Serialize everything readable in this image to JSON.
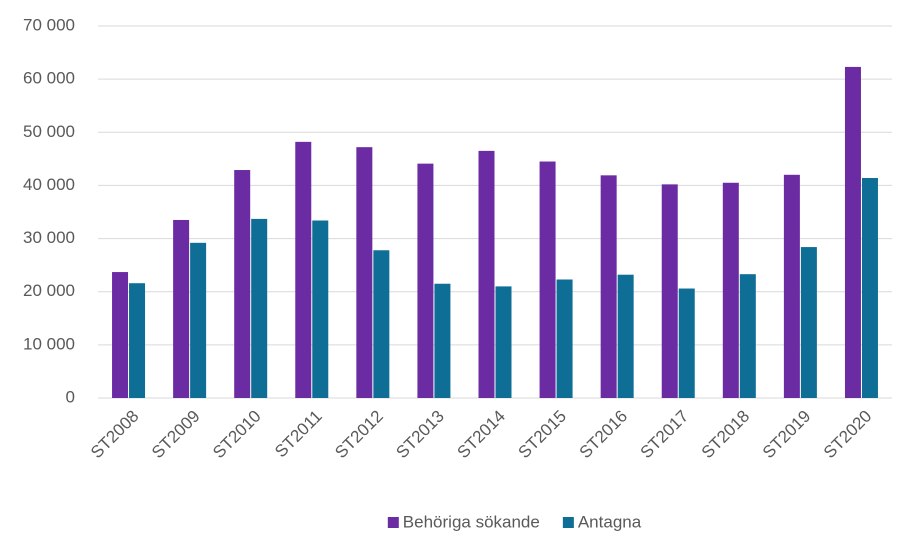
{
  "chart_data": {
    "type": "bar",
    "categories": [
      "ST2008",
      "ST2009",
      "ST2010",
      "ST2011",
      "ST2012",
      "ST2013",
      "ST2014",
      "ST2015",
      "ST2016",
      "ST2017",
      "ST2018",
      "ST2019",
      "ST2020"
    ],
    "series": [
      {
        "name": "Behöriga sökande",
        "color": "#6b2ca3",
        "values": [
          23700,
          33500,
          42900,
          48200,
          47200,
          44100,
          46500,
          44500,
          41900,
          40200,
          40500,
          42000,
          62300
        ]
      },
      {
        "name": "Antagna",
        "color": "#0e6e96",
        "values": [
          21600,
          29200,
          33700,
          33400,
          27800,
          21500,
          21000,
          22300,
          23200,
          20600,
          23300,
          28400,
          41400
        ]
      }
    ],
    "ylim": [
      0,
      70000
    ],
    "yticks": [
      0,
      {
        "value": 10000,
        "label": "10 000"
      },
      {
        "value": 20000,
        "label": "20 000"
      },
      {
        "value": 30000,
        "label": "30 000"
      },
      {
        "value": 40000,
        "label": "40 000"
      },
      {
        "value": 50000,
        "label": "50 000"
      },
      {
        "value": 60000,
        "label": "60 000"
      },
      {
        "value": 70000,
        "label": "70 000"
      }
    ],
    "grid": true,
    "legend": "bottom"
  }
}
